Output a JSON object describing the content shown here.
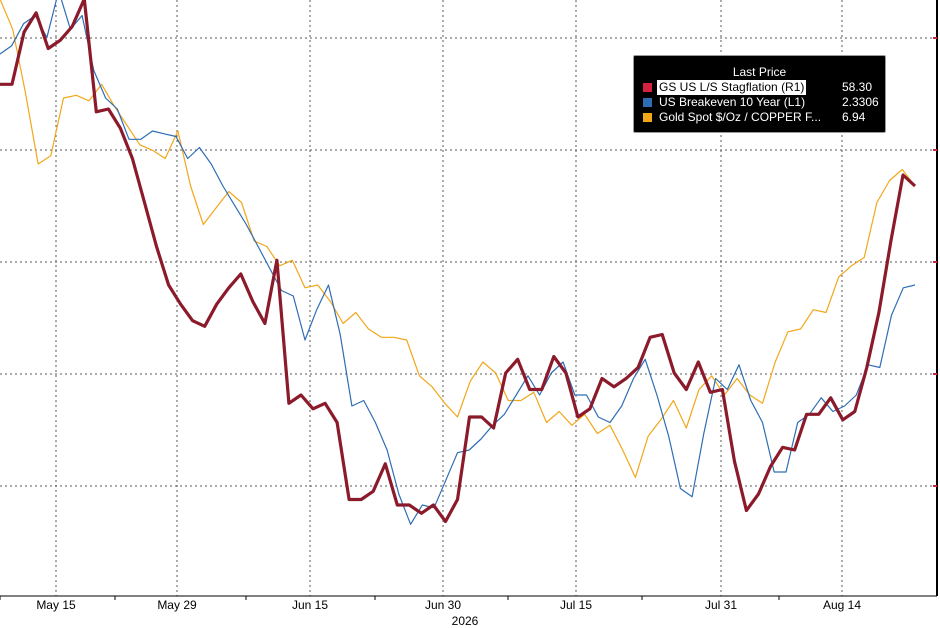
{
  "legend": {
    "title": "Last Price",
    "items": [
      {
        "name": "GS US L/S Stagflation  (R1)",
        "value": "58.30",
        "color": "#d62140",
        "highlighted": true
      },
      {
        "name": "US Breakeven 10 Year  (L1)",
        "value": "2.3306",
        "color": "#2e6db4",
        "highlighted": false
      },
      {
        "name": "Gold Spot $/Oz / COPPER F...",
        "value": "6.94",
        "color": "#f2a71b",
        "highlighted": false
      }
    ]
  },
  "chart_data": {
    "type": "line",
    "x_tick_labels": [
      "May 15",
      "May 29",
      "Jun 15",
      "Jun 30",
      "Jul 15",
      "Jul 31",
      "Aug 14"
    ],
    "x_year_label": "2026",
    "grid": true,
    "series": [
      {
        "name": "GS US L/S Stagflation  (R1)",
        "color": "#8b1a2b",
        "values": [
          0.865,
          0.865,
          0.96,
          0.995,
          0.93,
          0.945,
          0.97,
          1.02,
          0.815,
          0.82,
          0.785,
          0.73,
          0.65,
          0.57,
          0.5,
          0.465,
          0.435,
          0.425,
          0.465,
          0.495,
          0.52,
          0.47,
          0.43,
          0.545,
          0.285,
          0.3,
          0.275,
          0.285,
          0.25,
          0.11,
          0.11,
          0.125,
          0.175,
          0.1,
          0.1,
          0.085,
          0.1,
          0.07,
          0.11,
          0.26,
          0.26,
          0.24,
          0.34,
          0.365,
          0.31,
          0.31,
          0.37,
          0.34,
          0.26,
          0.275,
          0.33,
          0.315,
          0.33,
          0.35,
          0.405,
          0.41,
          0.34,
          0.31,
          0.36,
          0.305,
          0.31,
          0.18,
          0.09,
          0.12,
          0.17,
          0.205,
          0.2,
          0.265,
          0.265,
          0.295,
          0.255,
          0.27,
          0.35,
          0.45,
          0.58,
          0.7,
          0.68
        ]
      },
      {
        "name": "US Breakeven 10 Year  (L1)",
        "color": "#2e6db4",
        "values": [
          0.92,
          0.935,
          0.975,
          0.99,
          0.95,
          1.035,
          0.965,
          0.99,
          0.89,
          0.84,
          0.82,
          0.765,
          0.765,
          0.78,
          0.775,
          0.77,
          0.73,
          0.75,
          0.72,
          0.68,
          0.645,
          0.61,
          0.57,
          0.53,
          0.49,
          0.48,
          0.4,
          0.455,
          0.5,
          0.41,
          0.28,
          0.29,
          0.25,
          0.2,
          0.12,
          0.065,
          0.1,
          0.095,
          0.145,
          0.195,
          0.2,
          0.22,
          0.245,
          0.265,
          0.3,
          0.335,
          0.3,
          0.34,
          0.36,
          0.3,
          0.3,
          0.26,
          0.25,
          0.28,
          0.33,
          0.365,
          0.3,
          0.225,
          0.13,
          0.115,
          0.23,
          0.33,
          0.31,
          0.355,
          0.29,
          0.25,
          0.16,
          0.16,
          0.25,
          0.265,
          0.295,
          0.27,
          0.28,
          0.3,
          0.355,
          0.35,
          0.445,
          0.495,
          0.5
        ]
      },
      {
        "name": "Gold Spot $/Oz / COPPER F...",
        "color": "#f2a71b",
        "values": [
          1.02,
          0.965,
          0.85,
          0.72,
          0.735,
          0.84,
          0.845,
          0.835,
          0.865,
          0.825,
          0.79,
          0.755,
          0.745,
          0.73,
          0.78,
          0.68,
          0.61,
          0.64,
          0.67,
          0.65,
          0.58,
          0.57,
          0.535,
          0.545,
          0.495,
          0.5,
          0.47,
          0.43,
          0.45,
          0.42,
          0.405,
          0.405,
          0.4,
          0.335,
          0.315,
          0.285,
          0.26,
          0.325,
          0.36,
          0.34,
          0.29,
          0.29,
          0.305,
          0.25,
          0.27,
          0.245,
          0.265,
          0.23,
          0.245,
          0.2,
          0.15,
          0.225,
          0.255,
          0.29,
          0.24,
          0.31,
          0.335,
          0.3,
          0.33,
          0.3,
          0.285,
          0.36,
          0.415,
          0.42,
          0.455,
          0.45,
          0.515,
          0.535,
          0.55,
          0.65,
          0.69,
          0.71,
          0.68
        ]
      }
    ]
  }
}
